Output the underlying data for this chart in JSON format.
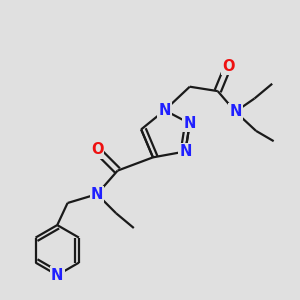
{
  "bg_color": "#e0e0e0",
  "bond_color": "#1a1a1a",
  "n_color": "#2020ff",
  "o_color": "#ee1111",
  "line_width": 1.6,
  "font_size": 10.5,
  "figsize": [
    3.0,
    3.0
  ],
  "dpi": 100,
  "xlim": [
    0,
    10
  ],
  "ylim": [
    0,
    10
  ]
}
